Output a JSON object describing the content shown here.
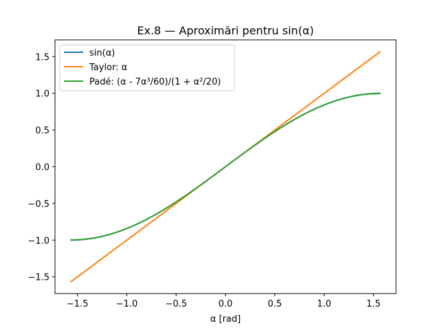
{
  "chart_data": {
    "type": "line",
    "title": "Ex.8 — Aproximări pentru sin(α)",
    "xlabel": "α [rad]",
    "ylabel": "",
    "xlim": [
      -1.7279,
      1.7279
    ],
    "ylim": [
      -1.7279,
      1.7279
    ],
    "x_range": [
      -1.5708,
      1.5708
    ],
    "xticks": [
      -1.5,
      -1.0,
      -0.5,
      0.0,
      0.5,
      1.0,
      1.5
    ],
    "xtick_labels": [
      "−1.5",
      "−1.0",
      "−0.5",
      "0.0",
      "0.5",
      "1.0",
      "1.5"
    ],
    "yticks": [
      -1.5,
      -1.0,
      -0.5,
      0.0,
      0.5,
      1.0,
      1.5
    ],
    "ytick_labels": [
      "−1.5",
      "−1.0",
      "−0.5",
      "0.0",
      "0.5",
      "1.0",
      "1.5"
    ],
    "grid": false,
    "legend_position": "top-left",
    "series": [
      {
        "name": "sin(α)",
        "color": "#1f77b4",
        "x": [
          -1.5708,
          -1.4137,
          -1.2566,
          -1.0996,
          -0.9425,
          -0.7854,
          -0.6283,
          -0.4712,
          -0.3142,
          -0.1571,
          0.0,
          0.1571,
          0.3142,
          0.4712,
          0.6283,
          0.7854,
          0.9425,
          1.0996,
          1.2566,
          1.4137,
          1.5708
        ],
        "y": [
          -1.0,
          -0.9877,
          -0.9511,
          -0.891,
          -0.809,
          -0.7071,
          -0.5878,
          -0.454,
          -0.309,
          -0.1564,
          0.0,
          0.1564,
          0.309,
          0.454,
          0.5878,
          0.7071,
          0.809,
          0.891,
          0.9511,
          0.9877,
          1.0
        ]
      },
      {
        "name": "Taylor: α",
        "color": "#ff7f0e",
        "x": [
          -1.5708,
          1.5708
        ],
        "y": [
          -1.5708,
          1.5708
        ]
      },
      {
        "name": "Padé: (α - 7α³/60)/(1 + α²/20)",
        "color": "#2ca02c",
        "x": [
          -1.5708,
          -1.4137,
          -1.2566,
          -1.0996,
          -0.9425,
          -0.7854,
          -0.6283,
          -0.4712,
          -0.3142,
          -0.1571,
          0.0,
          0.1571,
          0.3142,
          0.4712,
          0.6283,
          0.7854,
          0.9425,
          1.0996,
          1.2566,
          1.4137,
          1.5708
        ],
        "y": [
          -0.9996,
          -0.9874,
          -0.9509,
          -0.8909,
          -0.8089,
          -0.7071,
          -0.5878,
          -0.454,
          -0.309,
          -0.1564,
          0.0,
          0.1564,
          0.309,
          0.454,
          0.5878,
          0.7071,
          0.8089,
          0.8909,
          0.9509,
          0.9874,
          0.9996
        ]
      }
    ]
  }
}
